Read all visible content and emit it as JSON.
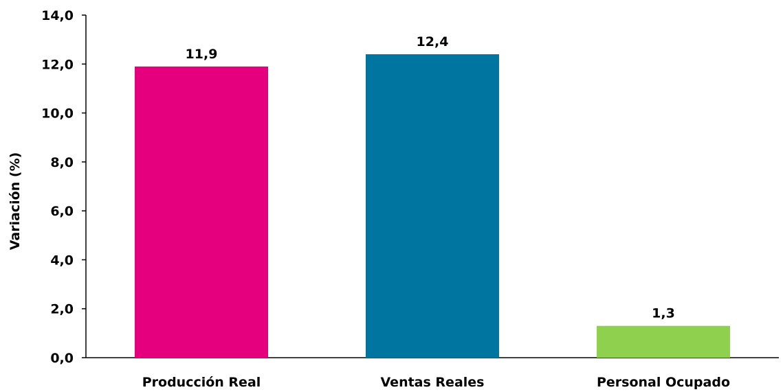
{
  "chart_data": {
    "type": "bar",
    "categories": [
      "Producción Real",
      "Ventas Reales",
      "Personal Ocupado"
    ],
    "values": [
      11.9,
      12.4,
      1.3
    ],
    "data_labels": [
      "11,9",
      "12,4",
      "1,3"
    ],
    "colors": [
      "#e5007d",
      "#00759f",
      "#8fd14f"
    ],
    "title": "",
    "xlabel": "",
    "ylabel": "Variación (%)",
    "ylim": [
      0,
      14
    ],
    "yticks": [
      "0,0",
      "2,0",
      "4,0",
      "6,0",
      "8,0",
      "10,0",
      "12,0",
      "14,0"
    ],
    "grid": false,
    "legend": "none"
  }
}
